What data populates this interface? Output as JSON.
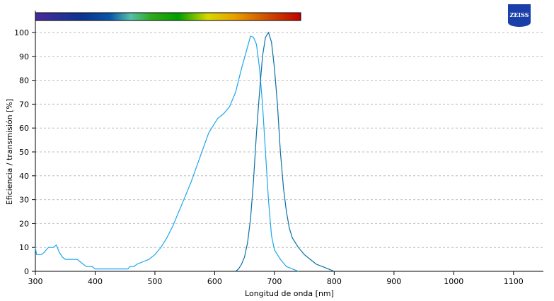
{
  "chart_data": {
    "type": "line",
    "title": "",
    "xlabel": "Longitud de onda [nm]",
    "ylabel": "Eficiencia / transmisión [%]",
    "xlim": [
      300,
      1150
    ],
    "ylim": [
      0,
      104
    ],
    "xticks": [
      300,
      400,
      500,
      600,
      700,
      800,
      900,
      1000,
      1100
    ],
    "yticks": [
      0,
      10,
      20,
      30,
      40,
      50,
      60,
      70,
      80,
      90,
      100
    ],
    "grid": "horizontal dashed",
    "spectrum_bar_range_nm": [
      300,
      744
    ],
    "series": [
      {
        "color": "#1ea6ee",
        "points": [
          [
            300,
            10
          ],
          [
            302,
            7
          ],
          [
            310,
            7
          ],
          [
            315,
            8
          ],
          [
            318,
            9
          ],
          [
            322,
            10
          ],
          [
            330,
            10
          ],
          [
            335,
            11
          ],
          [
            340,
            8
          ],
          [
            345,
            6
          ],
          [
            350,
            5
          ],
          [
            370,
            5
          ],
          [
            375,
            4
          ],
          [
            380,
            3
          ],
          [
            385,
            2
          ],
          [
            395,
            2
          ],
          [
            400,
            1
          ],
          [
            405,
            1
          ],
          [
            455,
            1
          ],
          [
            458,
            2
          ],
          [
            465,
            2
          ],
          [
            470,
            3
          ],
          [
            480,
            4
          ],
          [
            490,
            5
          ],
          [
            500,
            7
          ],
          [
            510,
            10
          ],
          [
            520,
            14
          ],
          [
            530,
            19
          ],
          [
            540,
            25
          ],
          [
            550,
            31
          ],
          [
            560,
            37
          ],
          [
            570,
            44
          ],
          [
            580,
            51
          ],
          [
            590,
            58
          ],
          [
            600,
            62
          ],
          [
            605,
            64
          ],
          [
            615,
            66
          ],
          [
            625,
            69
          ],
          [
            635,
            75
          ],
          [
            645,
            85
          ],
          [
            655,
            94
          ],
          [
            660,
            98.5
          ],
          [
            665,
            98
          ],
          [
            670,
            95
          ],
          [
            675,
            85
          ],
          [
            680,
            70
          ],
          [
            685,
            50
          ],
          [
            690,
            30
          ],
          [
            695,
            15
          ],
          [
            700,
            9
          ],
          [
            705,
            7
          ],
          [
            710,
            5
          ],
          [
            720,
            2
          ],
          [
            730,
            1
          ],
          [
            740,
            0
          ]
        ]
      },
      {
        "color": "#0b6fa6",
        "points": [
          [
            635,
            0
          ],
          [
            640,
            1
          ],
          [
            645,
            3
          ],
          [
            650,
            6
          ],
          [
            655,
            12
          ],
          [
            660,
            22
          ],
          [
            665,
            38
          ],
          [
            670,
            58
          ],
          [
            675,
            75
          ],
          [
            680,
            90
          ],
          [
            685,
            98
          ],
          [
            690,
            100
          ],
          [
            695,
            96
          ],
          [
            700,
            85
          ],
          [
            705,
            70
          ],
          [
            710,
            50
          ],
          [
            715,
            35
          ],
          [
            720,
            25
          ],
          [
            725,
            18
          ],
          [
            730,
            14
          ],
          [
            740,
            10
          ],
          [
            750,
            7
          ],
          [
            760,
            5
          ],
          [
            770,
            3
          ],
          [
            780,
            2
          ],
          [
            790,
            1
          ],
          [
            800,
            0
          ]
        ]
      }
    ]
  },
  "logo": {
    "text": "ZEISS"
  }
}
